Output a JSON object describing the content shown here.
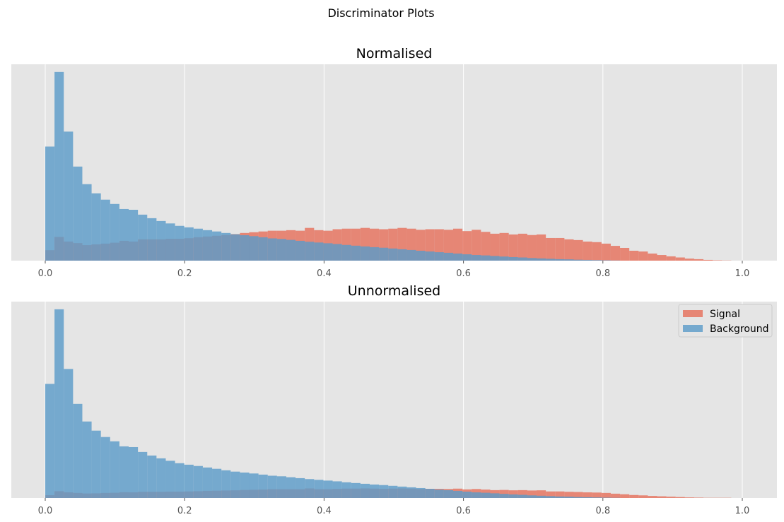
{
  "figure": {
    "suptitle": "Discriminator Plots"
  },
  "legend": {
    "placement": "upper-right of bottom panel",
    "entries": [
      "Signal",
      "Background"
    ]
  },
  "colors": {
    "signal": "#e5705c",
    "background": "#5c9bc8",
    "axes_background": "#e5e5e5",
    "grid": "#ffffff"
  },
  "chart_data": [
    {
      "type": "area",
      "histogram": true,
      "title": "Normalised",
      "xlabel": "",
      "ylabel": "",
      "xlim": [
        0,
        1.0
      ],
      "ylim": [
        0,
        10.5
      ],
      "x_ticks": [
        0.0,
        0.2,
        0.4,
        0.6,
        0.8,
        1.0
      ],
      "x_tick_labels": [
        "0.0",
        "0.2",
        "0.4",
        "0.6",
        "0.8",
        "1.0"
      ],
      "y_ticks_visible": false,
      "grid": "vertical",
      "bins": {
        "start": 0.0,
        "width": 0.0133
      },
      "series": [
        {
          "name": "Signal",
          "values": [
            0.56,
            1.27,
            1.02,
            0.94,
            0.83,
            0.87,
            0.91,
            0.96,
            1.06,
            1.02,
            1.14,
            1.14,
            1.14,
            1.17,
            1.17,
            1.2,
            1.25,
            1.29,
            1.33,
            1.37,
            1.42,
            1.48,
            1.52,
            1.56,
            1.6,
            1.6,
            1.63,
            1.6,
            1.75,
            1.63,
            1.6,
            1.68,
            1.71,
            1.71,
            1.75,
            1.71,
            1.68,
            1.71,
            1.75,
            1.71,
            1.65,
            1.68,
            1.68,
            1.65,
            1.71,
            1.58,
            1.65,
            1.54,
            1.44,
            1.48,
            1.4,
            1.44,
            1.37,
            1.4,
            1.21,
            1.21,
            1.14,
            1.1,
            1.02,
            0.99,
            0.91,
            0.79,
            0.68,
            0.53,
            0.49,
            0.38,
            0.3,
            0.23,
            0.17,
            0.11,
            0.08,
            0.04,
            0.02,
            0.01
          ]
        },
        {
          "name": "Background",
          "values": [
            6.1,
            10.09,
            6.9,
            5.03,
            4.09,
            3.6,
            3.26,
            3.03,
            2.76,
            2.72,
            2.46,
            2.27,
            2.12,
            1.99,
            1.86,
            1.78,
            1.71,
            1.63,
            1.56,
            1.48,
            1.41,
            1.36,
            1.31,
            1.25,
            1.19,
            1.16,
            1.11,
            1.06,
            1.01,
            0.97,
            0.93,
            0.89,
            0.84,
            0.8,
            0.76,
            0.72,
            0.69,
            0.65,
            0.61,
            0.57,
            0.53,
            0.49,
            0.45,
            0.42,
            0.38,
            0.34,
            0.3,
            0.28,
            0.25,
            0.22,
            0.19,
            0.17,
            0.14,
            0.12,
            0.1,
            0.08,
            0.07,
            0.05,
            0.04,
            0.03,
            0.02,
            0.01
          ]
        }
      ]
    },
    {
      "type": "area",
      "histogram": true,
      "title": "Unnormalised",
      "xlabel": "",
      "ylabel": "",
      "xlim": [
        0,
        1.0
      ],
      "ylim": [
        0,
        10.5
      ],
      "x_ticks": [
        0.0,
        0.2,
        0.4,
        0.6,
        0.8,
        1.0
      ],
      "x_tick_labels": [
        "0.0",
        "0.2",
        "0.4",
        "0.6",
        "0.8",
        "1.0"
      ],
      "y_ticks_visible": false,
      "grid": "vertical",
      "legend": "top-right",
      "bins": {
        "start": 0.0,
        "width": 0.0133
      },
      "series": [
        {
          "name": "Signal",
          "values": [
            0.15,
            0.36,
            0.3,
            0.27,
            0.24,
            0.25,
            0.27,
            0.28,
            0.31,
            0.3,
            0.33,
            0.33,
            0.33,
            0.34,
            0.34,
            0.35,
            0.36,
            0.38,
            0.39,
            0.4,
            0.41,
            0.43,
            0.44,
            0.45,
            0.47,
            0.47,
            0.47,
            0.47,
            0.51,
            0.47,
            0.47,
            0.49,
            0.5,
            0.5,
            0.51,
            0.5,
            0.49,
            0.5,
            0.51,
            0.5,
            0.48,
            0.49,
            0.49,
            0.48,
            0.5,
            0.46,
            0.48,
            0.45,
            0.42,
            0.43,
            0.41,
            0.42,
            0.4,
            0.41,
            0.35,
            0.35,
            0.33,
            0.32,
            0.3,
            0.29,
            0.27,
            0.23,
            0.2,
            0.16,
            0.14,
            0.11,
            0.09,
            0.07,
            0.05,
            0.03,
            0.02,
            0.01,
            0.01,
            0.01
          ]
        },
        {
          "name": "Background",
          "values": [
            6.1,
            10.09,
            6.9,
            5.03,
            4.09,
            3.6,
            3.26,
            3.03,
            2.76,
            2.72,
            2.46,
            2.27,
            2.12,
            1.99,
            1.86,
            1.78,
            1.71,
            1.63,
            1.56,
            1.48,
            1.41,
            1.36,
            1.31,
            1.25,
            1.19,
            1.16,
            1.11,
            1.06,
            1.01,
            0.97,
            0.93,
            0.89,
            0.84,
            0.8,
            0.76,
            0.72,
            0.69,
            0.65,
            0.61,
            0.57,
            0.53,
            0.49,
            0.45,
            0.42,
            0.38,
            0.34,
            0.3,
            0.28,
            0.25,
            0.22,
            0.19,
            0.17,
            0.14,
            0.12,
            0.1,
            0.08,
            0.07,
            0.05,
            0.04,
            0.03,
            0.02,
            0.01
          ]
        }
      ]
    }
  ]
}
